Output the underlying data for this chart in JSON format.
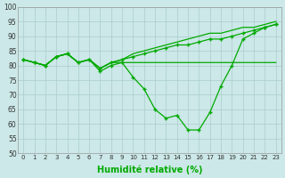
{
  "xlabel": "Humidité relative (%)",
  "xlim": [
    0,
    23
  ],
  "ylim": [
    50,
    100
  ],
  "xticks": [
    0,
    1,
    2,
    3,
    4,
    5,
    6,
    7,
    8,
    9,
    10,
    11,
    12,
    13,
    14,
    15,
    16,
    17,
    18,
    19,
    20,
    21,
    22,
    23
  ],
  "yticks": [
    50,
    55,
    60,
    65,
    70,
    75,
    80,
    85,
    90,
    95,
    100
  ],
  "background_color": "#cce8e8",
  "grid_color": "#aacccc",
  "line_color": "#00aa00",
  "series": [
    [
      82,
      81,
      80,
      83,
      84,
      81,
      82,
      79,
      81,
      81,
      81,
      81,
      81,
      81,
      81,
      81,
      81,
      81,
      81,
      81,
      81,
      81,
      81,
      81
    ],
    [
      82,
      81,
      80,
      83,
      84,
      81,
      82,
      79,
      81,
      82,
      83,
      84,
      85,
      86,
      87,
      87,
      88,
      89,
      89,
      90,
      91,
      92,
      93,
      94
    ],
    [
      82,
      81,
      80,
      83,
      84,
      81,
      82,
      79,
      81,
      82,
      84,
      85,
      86,
      87,
      88,
      89,
      90,
      91,
      91,
      92,
      93,
      93,
      94,
      95
    ],
    [
      82,
      81,
      80,
      83,
      84,
      81,
      82,
      78,
      80,
      81,
      76,
      72,
      65,
      62,
      63,
      58,
      58,
      64,
      73,
      80,
      89,
      91,
      93,
      94
    ]
  ]
}
